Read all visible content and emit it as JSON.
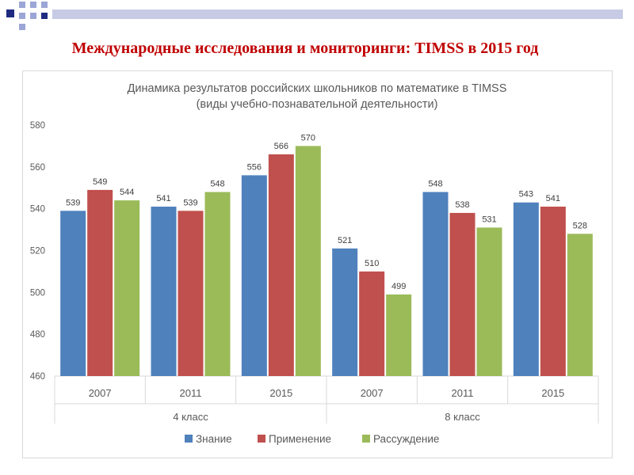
{
  "slide": {
    "title": "Международные исследования и мониторинги: TIMSS в 2015 год"
  },
  "colors": {
    "title": "#c00000",
    "deco_dark": "#1f2b80",
    "deco_light": "#9ba6d6",
    "series": [
      "#4f81bd",
      "#c0504d",
      "#9bbb59"
    ]
  },
  "chart_data": {
    "type": "bar",
    "title": "Динамика результатов российских школьников по математике в TIMSS",
    "subtitle": "(виды учебно-познавательной  деятельности)",
    "categories": [
      "2007",
      "2011",
      "2015",
      "2007",
      "2011",
      "2015"
    ],
    "groups": [
      {
        "label": "4 класс",
        "span": 3
      },
      {
        "label": "8 класс",
        "span": 3
      }
    ],
    "series": [
      {
        "name": "Знание",
        "values": [
          539,
          541,
          556,
          521,
          548,
          543
        ]
      },
      {
        "name": "Применение",
        "values": [
          549,
          539,
          566,
          510,
          538,
          541
        ]
      },
      {
        "name": "Рассуждение",
        "values": [
          544,
          548,
          570,
          499,
          531,
          528
        ]
      }
    ],
    "ylim": [
      460,
      580
    ],
    "yticks": [
      460,
      480,
      500,
      520,
      540,
      560,
      580
    ],
    "grid": false,
    "legend": "bottom",
    "data_labels": true
  }
}
